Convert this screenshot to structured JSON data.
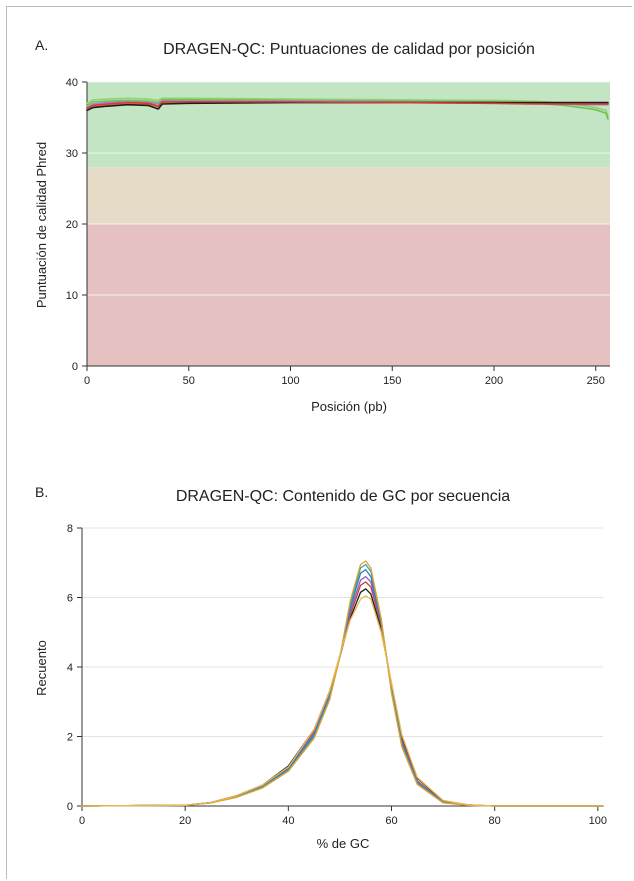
{
  "charts": [
    {
      "panel_label": "A.",
      "chart_data": {
        "type": "line",
        "title": "DRAGEN-QC: Puntuaciones de calidad por posición",
        "xlabel": "Posición (pb)",
        "ylabel": "Puntuación de calidad Phred",
        "xlim": [
          0,
          257
        ],
        "ylim": [
          0,
          40
        ],
        "xticks": [
          0,
          50,
          100,
          150,
          200,
          250
        ],
        "yticks": [
          0,
          10,
          20,
          30,
          40
        ],
        "grid": true,
        "background_bands": [
          {
            "from": 28,
            "to": 40,
            "color": "#c3e5c3"
          },
          {
            "from": 20,
            "to": 28,
            "color": "#e6dbc6"
          },
          {
            "from": 0,
            "to": 20,
            "color": "#e5c1c1"
          }
        ],
        "series": [
          {
            "color": "#8fd46b",
            "x": [
              0,
              3,
              10,
              20,
              30,
              35,
              37,
              50,
              100,
              150,
              200,
              220,
              235,
              245,
              250,
              255,
              256
            ],
            "y": [
              37.0,
              37.5,
              37.6,
              37.7,
              37.6,
              37.4,
              37.7,
              37.7,
              37.6,
              37.5,
              37.4,
              37.3,
              37.0,
              36.6,
              36.4,
              36.0,
              35.2
            ]
          },
          {
            "color": "#6fbf5a",
            "x": [
              0,
              3,
              10,
              20,
              30,
              35,
              37,
              50,
              100,
              150,
              200,
              220,
              235,
              245,
              250,
              255,
              256
            ],
            "y": [
              36.7,
              37.2,
              37.3,
              37.4,
              37.3,
              37.1,
              37.5,
              37.5,
              37.4,
              37.3,
              37.2,
              37.0,
              36.7,
              36.3,
              36.1,
              35.6,
              34.8
            ]
          },
          {
            "color": "#a67fd4",
            "x": [
              0,
              3,
              10,
              20,
              30,
              35,
              37,
              50,
              100,
              150,
              200,
              220,
              235,
              245,
              250,
              255,
              256
            ],
            "y": [
              36.4,
              36.9,
              37.1,
              37.2,
              37.1,
              36.9,
              37.3,
              37.3,
              37.3,
              37.2,
              37.1,
              37.0,
              36.9,
              36.8,
              36.8,
              36.8,
              36.8
            ]
          },
          {
            "color": "#e07b39",
            "x": [
              0,
              3,
              10,
              20,
              30,
              35,
              37,
              50,
              100,
              150,
              200,
              220,
              235,
              245,
              250,
              255,
              256
            ],
            "y": [
              36.2,
              36.6,
              36.8,
              37.0,
              36.9,
              36.5,
              37.1,
              37.2,
              37.2,
              37.1,
              37.0,
              37.0,
              37.0,
              37.0,
              37.0,
              37.0,
              37.0
            ]
          },
          {
            "color": "#1c1c1c",
            "x": [
              0,
              3,
              10,
              20,
              30,
              35,
              37,
              50,
              100,
              150,
              200,
              220,
              235,
              245,
              250,
              255,
              256
            ],
            "y": [
              36.0,
              36.4,
              36.6,
              36.8,
              36.7,
              36.2,
              36.9,
              37.0,
              37.1,
              37.1,
              37.1,
              37.1,
              37.1,
              37.1,
              37.1,
              37.1,
              37.1
            ]
          },
          {
            "color": "#d63a3a",
            "x": [
              0,
              3,
              10,
              20,
              30,
              35,
              37,
              50,
              100,
              150,
              200,
              220,
              235,
              245,
              250,
              255,
              256
            ],
            "y": [
              36.3,
              36.7,
              36.9,
              37.1,
              37.0,
              36.6,
              37.2,
              37.2,
              37.2,
              37.1,
              37.0,
              36.9,
              36.9,
              36.9,
              36.9,
              36.9,
              36.9
            ]
          }
        ]
      }
    },
    {
      "panel_label": "B.",
      "chart_data": {
        "type": "line",
        "title": "DRAGEN-QC: Contenido de GC por secuencia",
        "xlabel": "% de GC",
        "ylabel": "Recuento",
        "xlim": [
          0,
          101
        ],
        "ylim": [
          0,
          8
        ],
        "xticks": [
          0,
          20,
          40,
          60,
          80,
          100
        ],
        "yticks": [
          0,
          2,
          4,
          6,
          8
        ],
        "grid": true,
        "series": [
          {
            "color": "#1c1c1c",
            "x": [
              0,
              20,
              25,
              30,
              35,
              40,
              45,
              48,
              50,
              52,
              54,
              55,
              56,
              58,
              60,
              62,
              65,
              70,
              75,
              80,
              101
            ],
            "y": [
              0,
              0.02,
              0.1,
              0.3,
              0.6,
              1.15,
              2.2,
              3.3,
              4.3,
              5.4,
              6.15,
              6.25,
              6.1,
              5.1,
              3.5,
              2.0,
              0.8,
              0.15,
              0.03,
              0,
              0
            ]
          },
          {
            "color": "#d63a3a",
            "x": [
              0,
              20,
              25,
              30,
              35,
              40,
              45,
              48,
              50,
              52,
              54,
              55,
              56,
              58,
              60,
              62,
              65,
              70,
              75,
              80,
              101
            ],
            "y": [
              0,
              0.02,
              0.1,
              0.29,
              0.58,
              1.1,
              2.15,
              3.25,
              4.3,
              5.5,
              6.35,
              6.45,
              6.3,
              5.2,
              3.45,
              1.9,
              0.72,
              0.13,
              0.02,
              0,
              0
            ]
          },
          {
            "color": "#8b5fc7",
            "x": [
              0,
              20,
              25,
              30,
              35,
              40,
              45,
              48,
              50,
              52,
              54,
              55,
              56,
              58,
              60,
              62,
              65,
              70,
              75,
              80,
              101
            ],
            "y": [
              0,
              0.02,
              0.1,
              0.28,
              0.56,
              1.08,
              2.1,
              3.2,
              4.3,
              5.6,
              6.5,
              6.6,
              6.45,
              5.25,
              3.4,
              1.85,
              0.7,
              0.12,
              0.02,
              0,
              0
            ]
          },
          {
            "color": "#2e7fb8",
            "x": [
              0,
              20,
              25,
              30,
              35,
              40,
              45,
              48,
              50,
              52,
              54,
              55,
              56,
              58,
              60,
              62,
              65,
              70,
              75,
              80,
              101
            ],
            "y": [
              0,
              0.02,
              0.09,
              0.27,
              0.55,
              1.05,
              2.05,
              3.15,
              4.3,
              5.7,
              6.7,
              6.8,
              6.6,
              5.3,
              3.35,
              1.8,
              0.68,
              0.11,
              0.02,
              0,
              0
            ]
          },
          {
            "color": "#3aa7a0",
            "x": [
              0,
              20,
              25,
              30,
              35,
              40,
              45,
              48,
              50,
              52,
              54,
              55,
              56,
              58,
              60,
              62,
              65,
              70,
              75,
              80,
              101
            ],
            "y": [
              0,
              0.02,
              0.09,
              0.26,
              0.54,
              1.02,
              2.0,
              3.1,
              4.3,
              5.8,
              6.85,
              6.95,
              6.75,
              5.35,
              3.3,
              1.75,
              0.65,
              0.1,
              0.02,
              0,
              0
            ]
          },
          {
            "color": "#e0a030",
            "x": [
              0,
              20,
              25,
              30,
              35,
              40,
              45,
              48,
              50,
              52,
              54,
              55,
              56,
              58,
              60,
              62,
              65,
              70,
              75,
              80,
              101
            ],
            "y": [
              0,
              0.02,
              0.09,
              0.25,
              0.52,
              1.0,
              1.95,
              3.05,
              4.3,
              5.9,
              6.95,
              7.05,
              6.85,
              5.4,
              3.25,
              1.7,
              0.62,
              0.09,
              0.02,
              0,
              0
            ]
          },
          {
            "color": "#e8b84a",
            "x": [
              0,
              20,
              25,
              30,
              35,
              40,
              45,
              48,
              50,
              52,
              54,
              55,
              56,
              58,
              60,
              62,
              65,
              70,
              75,
              80,
              101
            ],
            "y": [
              0,
              0.02,
              0.1,
              0.3,
              0.6,
              1.12,
              2.2,
              3.3,
              4.35,
              5.35,
              5.95,
              6.05,
              5.95,
              5.0,
              3.55,
              2.05,
              0.82,
              0.16,
              0.03,
              0,
              0
            ]
          }
        ]
      }
    }
  ]
}
